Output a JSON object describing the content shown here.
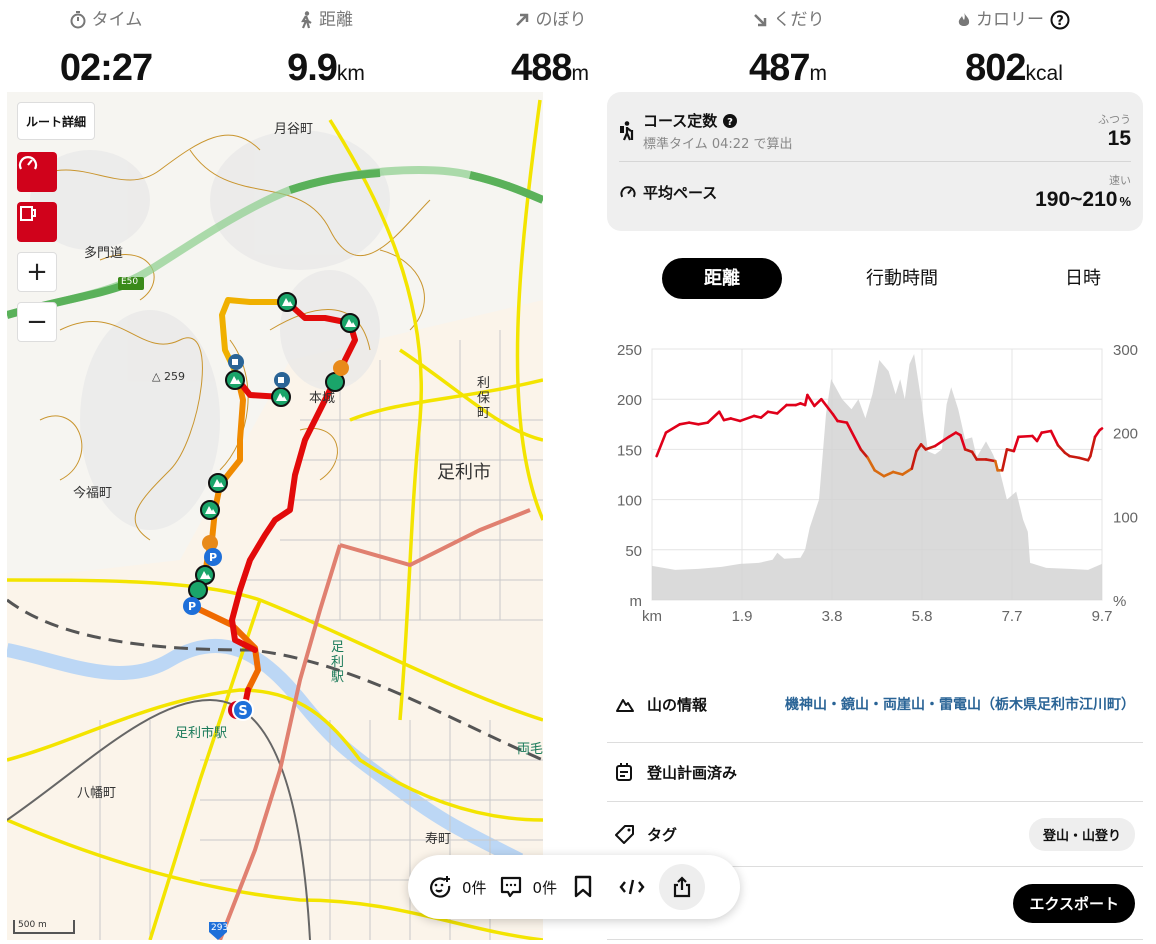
{
  "stats": [
    {
      "icon": "stopwatch-icon",
      "label": "タイム",
      "value": "02:27",
      "unit": ""
    },
    {
      "icon": "walker-icon",
      "label": "距離",
      "value": "9.9",
      "unit": "km"
    },
    {
      "icon": "arrow-up-right-icon",
      "label": "のぼり",
      "value": "488",
      "unit": "m"
    },
    {
      "icon": "arrow-down-right-icon",
      "label": "くだり",
      "value": "487",
      "unit": "m"
    },
    {
      "icon": "flame-icon",
      "label": "カロリー",
      "value": "802",
      "unit": "kcal"
    }
  ],
  "map": {
    "route_detail_label": "ルート詳細",
    "zoom_in": "+",
    "zoom_out": "−",
    "labels": {
      "tsukiya": "月谷町",
      "tamondo": "多門道",
      "e50": "E50",
      "peak": "△ 259",
      "honjo": "本城",
      "ashikaga_city": "足利市",
      "riho": "利保町",
      "imafuku": "今福町",
      "ashikaga_sta": "足利駅",
      "ashikagashi_sta": "足利市駅",
      "hachiman": "八幡町",
      "kotobuki": "寿町",
      "ryomo": "両毛",
      "r293": "293"
    },
    "scale": "500 m"
  },
  "course": {
    "title": "コース定数",
    "subtitle": "標準タイム 04:22 で算出",
    "level": "ふつう",
    "value": "15",
    "pace_title": "平均ペース",
    "pace_level": "速い",
    "pace_value": "190~210",
    "pace_unit": "%"
  },
  "tabs": [
    {
      "label": "距離",
      "active": true
    },
    {
      "label": "行動時間",
      "active": false
    },
    {
      "label": "日時",
      "active": false
    }
  ],
  "chart_data": {
    "type": "area+line",
    "x_label": "km",
    "y_left_label": "m",
    "y_right_label": "%",
    "x_ticks": [
      "km",
      "1.9",
      "3.8",
      "5.8",
      "7.7",
      "9.7"
    ],
    "xlim": [
      0,
      9.7
    ],
    "y_left_ticks": [
      "250",
      "200",
      "150",
      "100",
      "50",
      "m"
    ],
    "ylim_left": [
      0,
      250
    ],
    "y_right_ticks": [
      "300",
      "200",
      "100",
      "%"
    ],
    "ylim_right": [
      0,
      300
    ],
    "colors": {
      "elevation": "#d4d4d4",
      "pace": "#e0001a",
      "pace_slow": "#d86a10"
    },
    "series": [
      {
        "name": "elevation (m)",
        "axis": "left",
        "points": [
          [
            0,
            34
          ],
          [
            0.5,
            30
          ],
          [
            1.0,
            31
          ],
          [
            1.5,
            33
          ],
          [
            1.9,
            36
          ],
          [
            2.3,
            37
          ],
          [
            2.6,
            40
          ],
          [
            2.7,
            47
          ],
          [
            2.85,
            41
          ],
          [
            3.2,
            42
          ],
          [
            3.3,
            50
          ],
          [
            3.4,
            72
          ],
          [
            3.6,
            100
          ],
          [
            3.75,
            185
          ],
          [
            3.86,
            220
          ],
          [
            4.1,
            200
          ],
          [
            4.3,
            190
          ],
          [
            4.45,
            200
          ],
          [
            4.6,
            181
          ],
          [
            4.75,
            205
          ],
          [
            4.9,
            239
          ],
          [
            5.1,
            228
          ],
          [
            5.25,
            205
          ],
          [
            5.35,
            220
          ],
          [
            5.45,
            200
          ],
          [
            5.55,
            235
          ],
          [
            5.65,
            245
          ],
          [
            5.8,
            200
          ],
          [
            5.95,
            148
          ],
          [
            6.1,
            145
          ],
          [
            6.25,
            150
          ],
          [
            6.35,
            195
          ],
          [
            6.45,
            212
          ],
          [
            6.6,
            190
          ],
          [
            6.75,
            160
          ],
          [
            6.9,
            162
          ],
          [
            7.0,
            142
          ],
          [
            7.2,
            158
          ],
          [
            7.35,
            145
          ],
          [
            7.5,
            128
          ],
          [
            7.65,
            100
          ],
          [
            7.85,
            108
          ],
          [
            8.0,
            80
          ],
          [
            8.1,
            68
          ],
          [
            8.15,
            37
          ],
          [
            8.5,
            32
          ],
          [
            9.0,
            31
          ],
          [
            9.4,
            30
          ],
          [
            9.7,
            36
          ]
        ]
      },
      {
        "name": "pace (%)",
        "axis": "right",
        "points": [
          [
            0.1,
            172
          ],
          [
            0.3,
            200
          ],
          [
            0.6,
            210
          ],
          [
            0.8,
            212
          ],
          [
            1.0,
            210
          ],
          [
            1.2,
            212
          ],
          [
            1.45,
            225
          ],
          [
            1.55,
            215
          ],
          [
            1.7,
            217
          ],
          [
            1.9,
            214
          ],
          [
            2.2,
            220
          ],
          [
            2.35,
            218
          ],
          [
            2.5,
            225
          ],
          [
            2.7,
            223
          ],
          [
            2.9,
            233
          ],
          [
            3.1,
            233
          ],
          [
            3.2,
            235
          ],
          [
            3.3,
            233
          ],
          [
            3.35,
            245
          ],
          [
            3.5,
            232
          ],
          [
            3.65,
            240
          ],
          [
            3.9,
            222
          ],
          [
            4.0,
            214
          ],
          [
            4.2,
            212
          ],
          [
            4.5,
            180
          ],
          [
            4.65,
            170
          ],
          [
            4.8,
            155
          ],
          [
            5.0,
            148
          ],
          [
            5.2,
            153
          ],
          [
            5.4,
            150
          ],
          [
            5.6,
            157
          ],
          [
            5.7,
            178
          ],
          [
            5.8,
            186
          ],
          [
            5.9,
            180
          ],
          [
            6.1,
            184
          ],
          [
            6.4,
            195
          ],
          [
            6.55,
            200
          ],
          [
            6.65,
            197
          ],
          [
            6.75,
            180
          ],
          [
            6.9,
            177
          ],
          [
            7.0,
            168
          ],
          [
            7.2,
            168
          ],
          [
            7.4,
            166
          ],
          [
            7.45,
            155
          ],
          [
            7.55,
            155
          ],
          [
            7.65,
            180
          ],
          [
            7.8,
            178
          ],
          [
            7.9,
            195
          ],
          [
            8.2,
            196
          ],
          [
            8.3,
            190
          ],
          [
            8.4,
            200
          ],
          [
            8.6,
            202
          ],
          [
            8.75,
            185
          ],
          [
            8.9,
            176
          ],
          [
            9.0,
            172
          ],
          [
            9.2,
            170
          ],
          [
            9.4,
            167
          ],
          [
            9.45,
            172
          ],
          [
            9.55,
            195
          ],
          [
            9.65,
            203
          ],
          [
            9.7,
            205
          ]
        ]
      }
    ]
  },
  "info": {
    "mountain_label": "山の情報",
    "mountain_value": "機神山・鏡山・両崖山・雷電山（栃木県足利市江川町）",
    "plan_label": "登山計画済み",
    "tag_label": "タグ",
    "tag_value": "登山・山登り",
    "export_label": "エクスポート"
  },
  "actions": {
    "reactions_count": "0件",
    "comments_count": "0件"
  }
}
